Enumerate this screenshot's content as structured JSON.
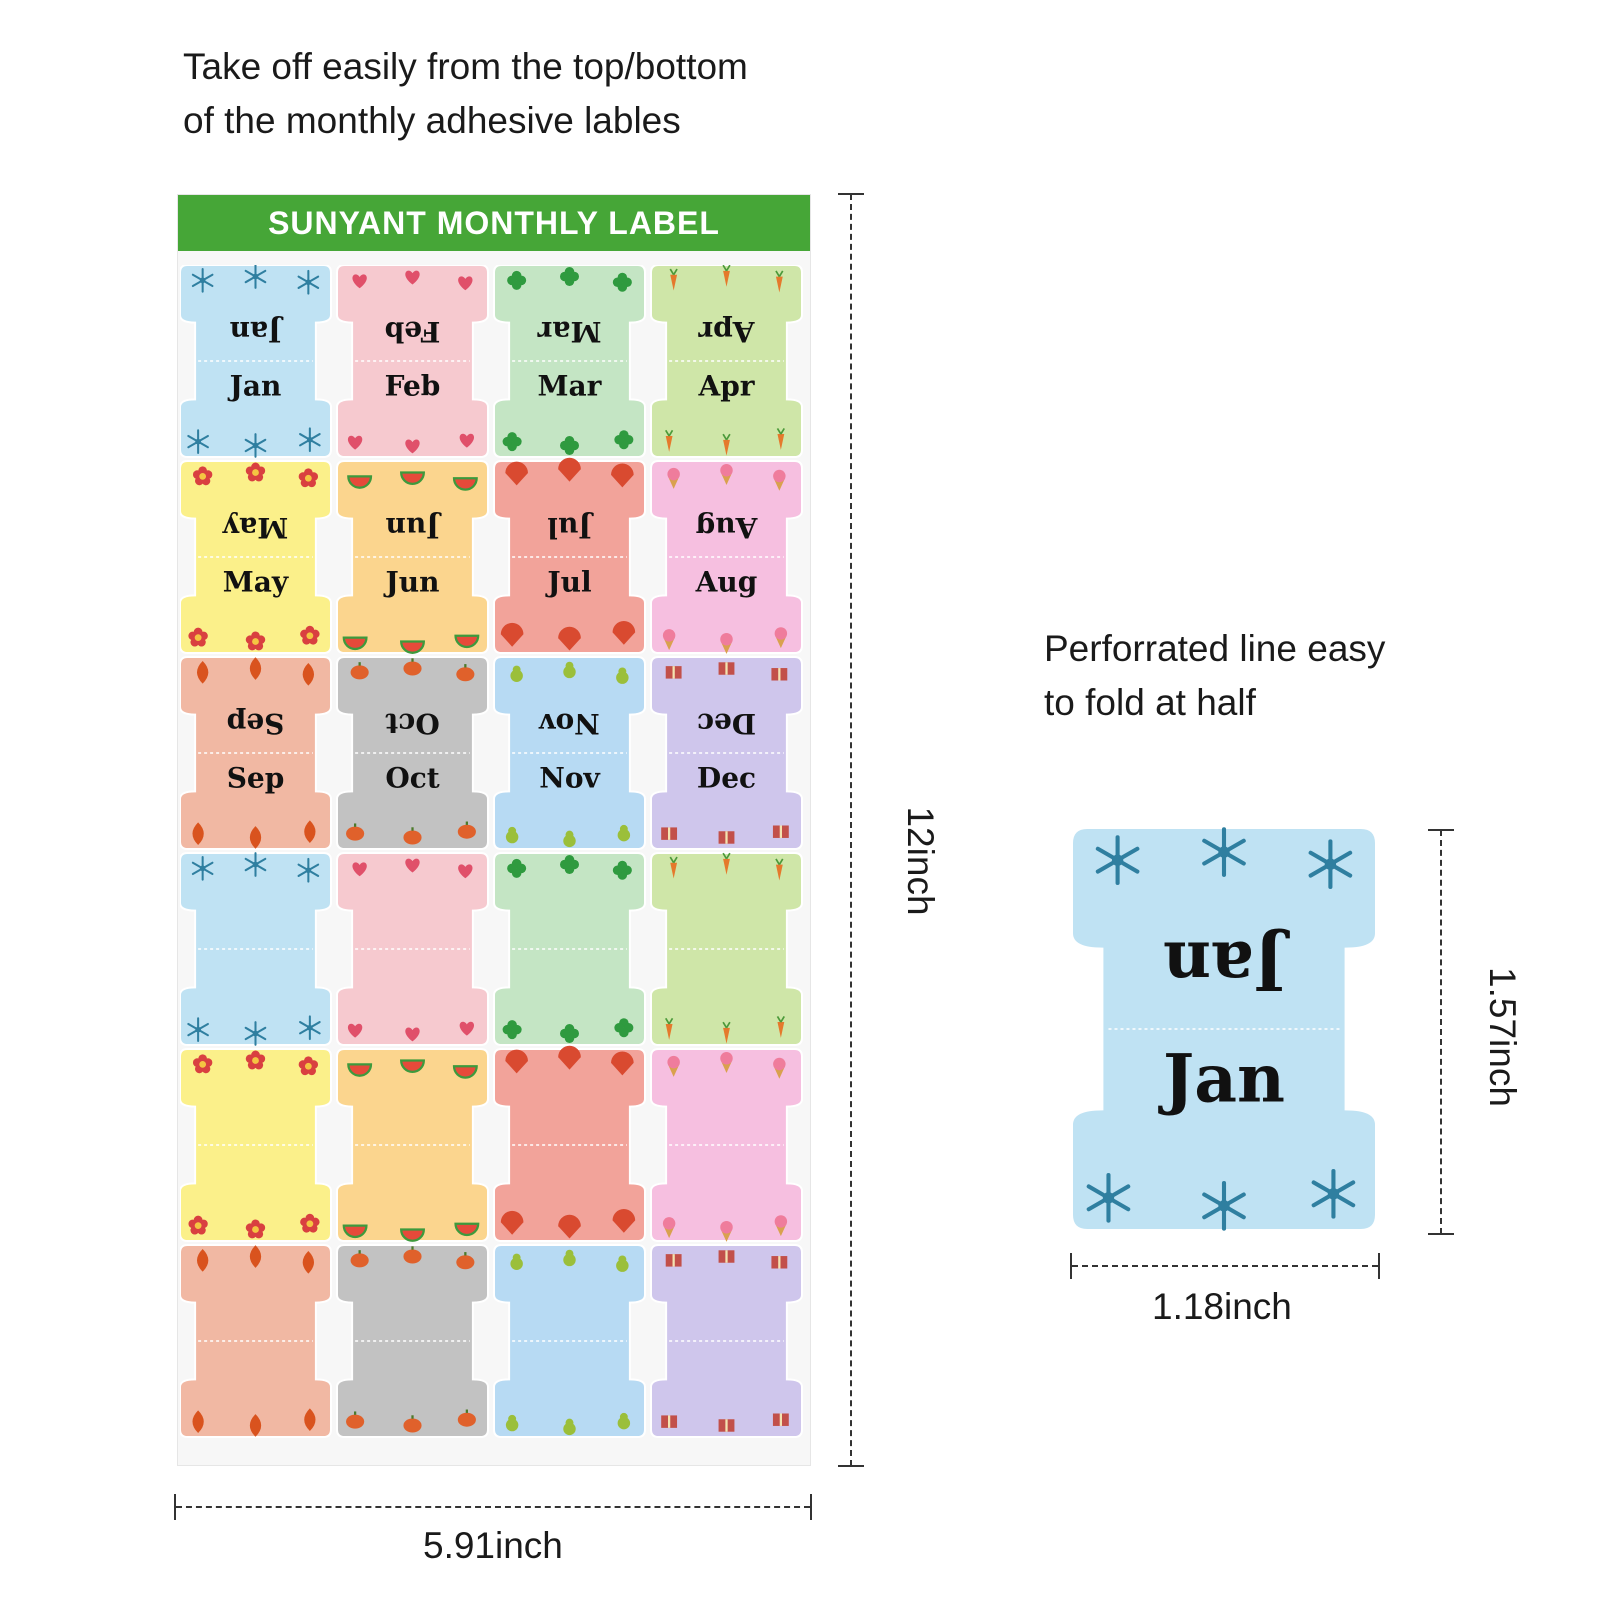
{
  "captions": {
    "top": [
      "Take off easily from the top/bottom",
      "of the monthly adhesive lables"
    ],
    "side": [
      "Perforrated line easy",
      "to fold at half"
    ]
  },
  "sheet": {
    "title": "SUNYANT MONTHLY LABEL",
    "width_label": "5.91inch",
    "height_label": "12inch",
    "labels": [
      {
        "text": "Jan",
        "color": "#bfe2f3",
        "accent": "#2f7fa0",
        "motif": "snowflake"
      },
      {
        "text": "Feb",
        "color": "#f6c9cf",
        "accent": "#e0506a",
        "motif": "heart"
      },
      {
        "text": "Mar",
        "color": "#c4e5c4",
        "accent": "#2f9a3f",
        "motif": "clover"
      },
      {
        "text": "Apr",
        "color": "#cfe6a8",
        "accent": "#e5792c",
        "motif": "carrot"
      },
      {
        "text": "May",
        "color": "#fbf08a",
        "accent": "#d94040",
        "motif": "flower"
      },
      {
        "text": "Jun",
        "color": "#fbd58e",
        "accent": "#e64a3a",
        "motif": "watermelon"
      },
      {
        "text": "Jul",
        "color": "#f2a39a",
        "accent": "#d94a30",
        "motif": "shell"
      },
      {
        "text": "Aug",
        "color": "#f6bfe0",
        "accent": "#ef7c9c",
        "motif": "icecream"
      },
      {
        "text": "Sep",
        "color": "#f1b8a3",
        "accent": "#d9531e",
        "motif": "leaf"
      },
      {
        "text": "Oct",
        "color": "#c2c2c2",
        "accent": "#e0612b",
        "motif": "pumpkin"
      },
      {
        "text": "Nov",
        "color": "#b7daf3",
        "accent": "#9bbf3a",
        "motif": "pear"
      },
      {
        "text": "Dec",
        "color": "#cfc6ec",
        "accent": "#c2504a",
        "motif": "gift"
      }
    ],
    "blank_rows": 3
  },
  "sample": {
    "text": "Jan",
    "color": "#bfe2f3",
    "accent": "#2f7fa0",
    "width_label": "1.18inch",
    "height_label": "1.57inch"
  }
}
